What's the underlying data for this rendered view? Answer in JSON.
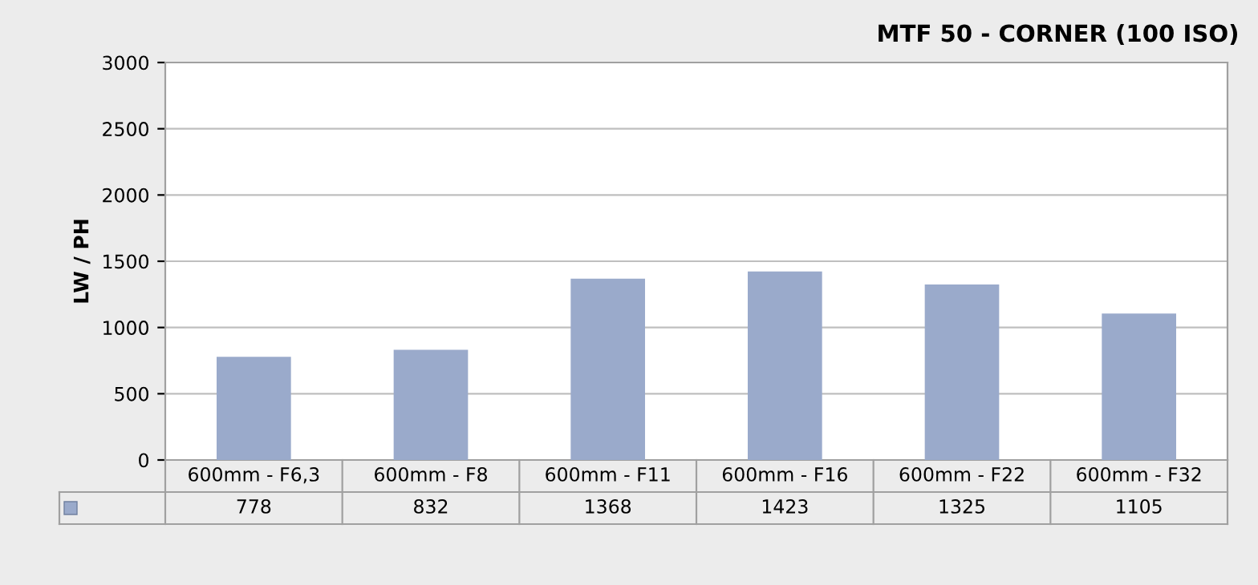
{
  "chart_data": {
    "type": "bar",
    "title": "MTF 50 - CORNER (100 ISO)",
    "ylabel": "LW / PH",
    "categories": [
      "600mm - F6,3",
      "600mm - F8",
      "600mm - F11",
      "600mm - F16",
      "600mm - F22",
      "600mm - F32"
    ],
    "series": [
      {
        "color": "#9aaacb",
        "values": [
          778,
          832,
          1368,
          1423,
          1325,
          1105
        ]
      }
    ],
    "ylim": [
      0,
      3000
    ],
    "yticks": [
      0,
      500,
      1000,
      1500,
      2000,
      2500,
      3000
    ],
    "grid": "y",
    "data_labels": true
  }
}
